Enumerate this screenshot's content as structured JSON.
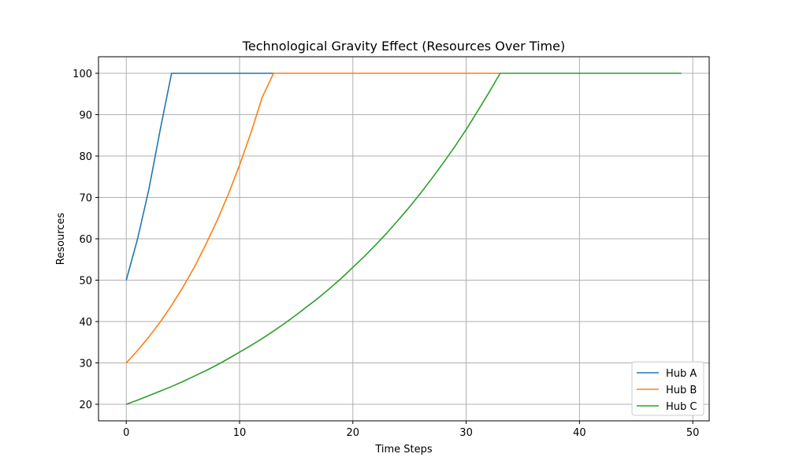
{
  "chart_data": {
    "type": "line",
    "title": "Technological Gravity Effect (Resources Over Time)",
    "xlabel": "Time Steps",
    "ylabel": "Resources",
    "xlim": [
      -2.45,
      51.45
    ],
    "ylim": [
      16,
      104
    ],
    "xticks": [
      0,
      10,
      20,
      30,
      40,
      50
    ],
    "yticks": [
      20,
      30,
      40,
      50,
      60,
      70,
      80,
      90,
      100
    ],
    "grid": true,
    "legend_position": "lower-right",
    "series": [
      {
        "name": "Hub A",
        "color": "#1f77b4",
        "x": [
          0,
          1,
          2,
          3,
          4,
          5,
          6,
          7,
          8,
          9,
          10,
          11,
          12,
          13
        ],
        "values": [
          50,
          60,
          72,
          86.4,
          100,
          100,
          100,
          100,
          100,
          100,
          100,
          100,
          100,
          100
        ]
      },
      {
        "name": "Hub B",
        "color": "#ff7f0e",
        "x": [
          0,
          1,
          2,
          3,
          4,
          5,
          6,
          7,
          8,
          9,
          10,
          11,
          12,
          13,
          14,
          15,
          16,
          17,
          18,
          19,
          20,
          21,
          22,
          23,
          24,
          25,
          26,
          27,
          28,
          29,
          30,
          31,
          32,
          33
        ],
        "values": [
          30,
          33,
          36.3,
          39.9,
          43.9,
          48.3,
          53.1,
          58.5,
          64.3,
          70.7,
          77.8,
          85.6,
          94.2,
          100,
          100,
          100,
          100,
          100,
          100,
          100,
          100,
          100,
          100,
          100,
          100,
          100,
          100,
          100,
          100,
          100,
          100,
          100,
          100,
          100
        ]
      },
      {
        "name": "Hub C",
        "color": "#2ca02c",
        "x": [
          0,
          1,
          2,
          3,
          4,
          5,
          6,
          7,
          8,
          9,
          10,
          11,
          12,
          13,
          14,
          15,
          16,
          17,
          18,
          19,
          20,
          21,
          22,
          23,
          24,
          25,
          26,
          27,
          28,
          29,
          30,
          31,
          32,
          33,
          34,
          35,
          36,
          37,
          38,
          39,
          40,
          41,
          42,
          43,
          44,
          45,
          46,
          47,
          48,
          49
        ],
        "values": [
          20,
          21,
          22.1,
          23.2,
          24.3,
          25.5,
          26.8,
          28.1,
          29.5,
          31,
          32.6,
          34.2,
          35.9,
          37.7,
          39.6,
          41.6,
          43.7,
          45.8,
          48.1,
          50.5,
          53.1,
          55.7,
          58.5,
          61.4,
          64.5,
          67.7,
          71.1,
          74.7,
          78.4,
          82.3,
          86.4,
          90.8,
          95.3,
          100,
          100,
          100,
          100,
          100,
          100,
          100,
          100,
          100,
          100,
          100,
          100,
          100,
          100,
          100,
          100,
          100
        ]
      }
    ]
  }
}
